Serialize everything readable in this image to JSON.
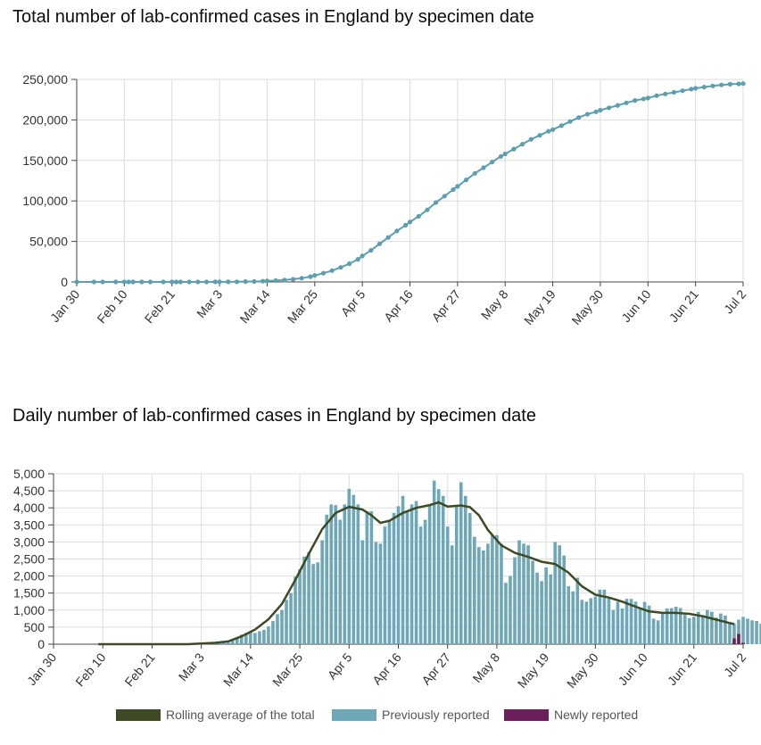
{
  "page": {
    "chart1_title": "Total number of lab-confirmed cases in England by specimen date",
    "chart2_title": "Daily number of lab-confirmed cases in England by specimen date"
  },
  "colors": {
    "previous": "#6ea8b8",
    "cumulative_line": "#5c9fb0",
    "newly": "#6a1f5a",
    "rolling": "#3d4a24",
    "grid": "#dddddd",
    "axis": "#444444"
  },
  "chart_data": [
    {
      "type": "line",
      "title": "Total number of lab-confirmed cases in England by specimen date",
      "xlabel": "",
      "ylabel": "",
      "x_start": "Jan 30",
      "x_end": "Jul 2",
      "x_range_days": [
        0,
        154
      ],
      "ylim": [
        0,
        250000
      ],
      "yticks": [
        0,
        50000,
        100000,
        150000,
        200000,
        250000
      ],
      "ytick_labels": [
        "0",
        "50,000",
        "100,000",
        "150,000",
        "200,000",
        "250,000"
      ],
      "xtick_labels": [
        "Jan 30",
        "Feb 10",
        "Feb 21",
        "Mar 3",
        "Mar 14",
        "Mar 25",
        "Apr 5",
        "Apr 16",
        "Apr 27",
        "May 8",
        "May 19",
        "May 30",
        "Jun 10",
        "Jun 21",
        "Jul 2"
      ],
      "xtick_days": [
        0,
        11,
        22,
        33,
        44,
        55,
        66,
        77,
        88,
        99,
        110,
        121,
        132,
        143,
        154
      ],
      "grid": true,
      "series": [
        {
          "name": "Cumulative cases",
          "points": [
            [
              0,
              2
            ],
            [
              4,
              2
            ],
            [
              6,
              3
            ],
            [
              9,
              8
            ],
            [
              11,
              9
            ],
            [
              12,
              9
            ],
            [
              13,
              10
            ],
            [
              15,
              12
            ],
            [
              17,
              15
            ],
            [
              20,
              16
            ],
            [
              22,
              18
            ],
            [
              23,
              19
            ],
            [
              24,
              19
            ],
            [
              26,
              22
            ],
            [
              28,
              25
            ],
            [
              30,
              40
            ],
            [
              32,
              60
            ],
            [
              33,
              80
            ],
            [
              35,
              150
            ],
            [
              37,
              250
            ],
            [
              39,
              400
            ],
            [
              41,
              600
            ],
            [
              43,
              900
            ],
            [
              44,
              1200
            ],
            [
              46,
              1700
            ],
            [
              48,
              2400
            ],
            [
              50,
              3300
            ],
            [
              52,
              4600
            ],
            [
              54,
              6500
            ],
            [
              55,
              8000
            ],
            [
              57,
              10800
            ],
            [
              59,
              14000
            ],
            [
              61,
              18000
            ],
            [
              63,
              22500
            ],
            [
              65,
              28000
            ],
            [
              66,
              32000
            ],
            [
              68,
              39000
            ],
            [
              70,
              47000
            ],
            [
              72,
              55000
            ],
            [
              74,
              63000
            ],
            [
              76,
              70000
            ],
            [
              77,
              74000
            ],
            [
              79,
              81000
            ],
            [
              81,
              89000
            ],
            [
              83,
              98000
            ],
            [
              85,
              106000
            ],
            [
              87,
              114000
            ],
            [
              88,
              118000
            ],
            [
              90,
              126000
            ],
            [
              92,
              134000
            ],
            [
              94,
              141000
            ],
            [
              96,
              148000
            ],
            [
              98,
              155000
            ],
            [
              99,
              158000
            ],
            [
              101,
              164000
            ],
            [
              103,
              170000
            ],
            [
              105,
              176000
            ],
            [
              107,
              181000
            ],
            [
              109,
              186000
            ],
            [
              110,
              188000
            ],
            [
              112,
              193000
            ],
            [
              114,
              198000
            ],
            [
              116,
              203000
            ],
            [
              118,
              207000
            ],
            [
              120,
              210000
            ],
            [
              121,
              212000
            ],
            [
              123,
              215000
            ],
            [
              125,
              218000
            ],
            [
              127,
              221000
            ],
            [
              129,
              224000
            ],
            [
              131,
              226000
            ],
            [
              132,
              227000
            ],
            [
              134,
              230000
            ],
            [
              136,
              232000
            ],
            [
              138,
              234000
            ],
            [
              140,
              236000
            ],
            [
              142,
              238000
            ],
            [
              143,
              239000
            ],
            [
              145,
              240500
            ],
            [
              147,
              242000
            ],
            [
              149,
              243200
            ],
            [
              151,
              244000
            ],
            [
              153,
              244500
            ],
            [
              154,
              244800
            ]
          ]
        }
      ]
    },
    {
      "type": "bar",
      "title": "Daily number of lab-confirmed cases in England by specimen date",
      "xlabel": "",
      "ylabel": "",
      "x_start": "Jan 30",
      "x_end": "Jul 2",
      "x_range_days": [
        0,
        154
      ],
      "ylim": [
        0,
        5000
      ],
      "yticks": [
        0,
        500,
        1000,
        1500,
        2000,
        2500,
        3000,
        3500,
        4000,
        4500,
        5000
      ],
      "ytick_labels": [
        "0",
        "500",
        "1,000",
        "1,500",
        "2,000",
        "2,500",
        "3,000",
        "3,500",
        "4,000",
        "4,500",
        "5,000"
      ],
      "xtick_labels": [
        "Jan 30",
        "Feb 10",
        "Feb 21",
        "Mar 3",
        "Mar 14",
        "Mar 25",
        "Apr 5",
        "Apr 16",
        "Apr 27",
        "May 8",
        "May 19",
        "May 30",
        "Jun 10",
        "Jun 21",
        "Jul 2"
      ],
      "xtick_days": [
        0,
        11,
        22,
        33,
        44,
        55,
        66,
        77,
        88,
        99,
        110,
        121,
        132,
        143,
        154
      ],
      "grid": true,
      "bar_start_day": 35,
      "previously_reported": [
        20,
        30,
        50,
        80,
        100,
        150,
        200,
        280,
        330,
        380,
        330,
        380,
        420,
        520,
        680,
        880,
        1000,
        1300,
        1500,
        1980,
        2200,
        2570,
        2700,
        2350,
        2400,
        3050,
        3800,
        4100,
        4080,
        3650,
        4100,
        4560,
        4380,
        4100,
        3050,
        3900,
        3900,
        3000,
        2950,
        3450,
        3650,
        3850,
        4050,
        4350,
        3900,
        4100,
        4200,
        3450,
        3650,
        4100,
        4800,
        4550,
        4350,
        3450,
        2900,
        4050,
        4750,
        4350,
        3850,
        3150,
        2850,
        2750,
        2950,
        3200,
        3200,
        2950,
        1800,
        2000,
        2550,
        3050,
        2950,
        2900,
        2450,
        2100,
        1850,
        2250,
        2050,
        3000,
        2900,
        2600,
        1700,
        1550,
        1950,
        1300,
        1250,
        1350,
        1400,
        1600,
        1600,
        1350,
        1000,
        1250,
        1050,
        1330,
        1330,
        1250,
        1040,
        1240,
        1130,
        750,
        700,
        900,
        1050,
        1060,
        1100,
        1060,
        860,
        760,
        800,
        950,
        850,
        1000,
        950,
        780,
        900,
        840,
        650,
        600,
        720,
        800,
        750,
        700,
        680,
        600,
        500,
        650,
        550
      ],
      "newly_reported": [
        0,
        0,
        0,
        0,
        0,
        0,
        0,
        0,
        0,
        0,
        0,
        0,
        0,
        0,
        0,
        0,
        0,
        0,
        0,
        0,
        0,
        0,
        0,
        0,
        0,
        0,
        0,
        0,
        0,
        0,
        0,
        0,
        0,
        0,
        0,
        0,
        0,
        0,
        0,
        0,
        0,
        0,
        0,
        0,
        0,
        0,
        0,
        0,
        0,
        0,
        0,
        0,
        0,
        0,
        0,
        0,
        0,
        0,
        0,
        0,
        0,
        0,
        0,
        0,
        0,
        0,
        0,
        0,
        0,
        0,
        0,
        0,
        0,
        0,
        0,
        0,
        0,
        0,
        0,
        0,
        0,
        0,
        0,
        0,
        0,
        0,
        0,
        0,
        0,
        0,
        0,
        0,
        0,
        0,
        0,
        0,
        0,
        0,
        0,
        0,
        0,
        0,
        0,
        0,
        0,
        0,
        0,
        0,
        0,
        0,
        0,
        0,
        0,
        0,
        0,
        0,
        0,
        0,
        0,
        0,
        0,
        0,
        0,
        0,
        0,
        20,
        60,
        150
      ],
      "extra_bars": [
        [
          152,
          170
        ],
        [
          153,
          300
        ],
        [
          154,
          40
        ]
      ],
      "series": [
        {
          "name": "Rolling average of the total",
          "points": [
            [
              10,
              0
            ],
            [
              30,
              0
            ],
            [
              33,
              20
            ],
            [
              36,
              40
            ],
            [
              39,
              80
            ],
            [
              42,
              230
            ],
            [
              45,
              430
            ],
            [
              48,
              730
            ],
            [
              51,
              1180
            ],
            [
              54,
              1890
            ],
            [
              57,
              2650
            ],
            [
              60,
              3380
            ],
            [
              63,
              3850
            ],
            [
              66,
              4030
            ],
            [
              69,
              3950
            ],
            [
              71,
              3780
            ],
            [
              73,
              3560
            ],
            [
              75,
              3620
            ],
            [
              78,
              3850
            ],
            [
              81,
              4000
            ],
            [
              84,
              4080
            ],
            [
              86,
              4160
            ],
            [
              88,
              4040
            ],
            [
              91,
              4070
            ],
            [
              93,
              4020
            ],
            [
              95,
              3780
            ],
            [
              97,
              3350
            ],
            [
              100,
              2900
            ],
            [
              103,
              2680
            ],
            [
              106,
              2560
            ],
            [
              109,
              2420
            ],
            [
              112,
              2350
            ],
            [
              115,
              2100
            ],
            [
              118,
              1700
            ],
            [
              121,
              1450
            ],
            [
              124,
              1370
            ],
            [
              127,
              1250
            ],
            [
              130,
              1100
            ],
            [
              133,
              960
            ],
            [
              136,
              920
            ],
            [
              139,
              920
            ],
            [
              142,
              890
            ],
            [
              145,
              820
            ],
            [
              148,
              720
            ],
            [
              151,
              620
            ],
            [
              152,
              590
            ]
          ]
        }
      ],
      "legend": [
        {
          "name": "Rolling average of the total",
          "kind": "rolling"
        },
        {
          "name": "Previously reported",
          "kind": "previous"
        },
        {
          "name": "Newly reported",
          "kind": "newly"
        }
      ]
    }
  ]
}
